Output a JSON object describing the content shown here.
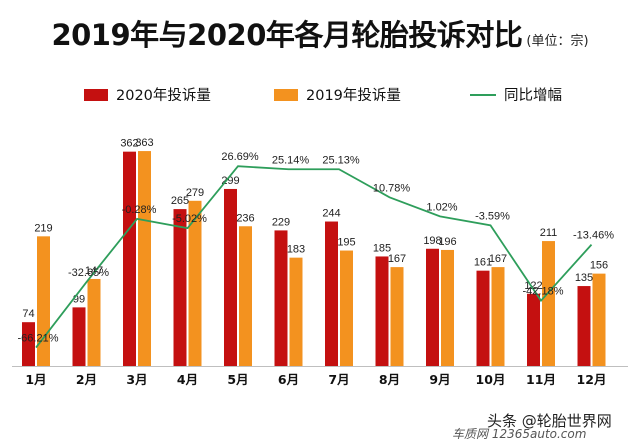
{
  "title": "2019年与2020年各月轮胎投诉对比",
  "unit": "(单位：宗)",
  "legend": [
    {
      "label": "2020年投诉量",
      "type": "bar",
      "color": "#c41010"
    },
    {
      "label": "2019年投诉量",
      "type": "bar",
      "color": "#f3921f"
    },
    {
      "label": "同比增幅",
      "type": "line",
      "color": "#2e9e5b"
    }
  ],
  "watermark": {
    "line1": "头条 @轮胎世界网",
    "line2": "车质网 12365auto.com"
  },
  "chart_data": {
    "type": "bar",
    "title": "2019年与2020年各月轮胎投诉对比",
    "categories": [
      "1月",
      "2月",
      "3月",
      "4月",
      "5月",
      "6月",
      "7月",
      "8月",
      "9月",
      "10月",
      "11月",
      "12月"
    ],
    "series": [
      {
        "name": "2020年投诉量",
        "color": "#c41010",
        "values": [
          74,
          99,
          362,
          265,
          299,
          229,
          244,
          185,
          198,
          161,
          122,
          135
        ]
      },
      {
        "name": "2019年投诉量",
        "color": "#f3921f",
        "values": [
          219,
          147,
          363,
          279,
          236,
          183,
          195,
          167,
          196,
          167,
          211,
          156
        ]
      },
      {
        "name": "同比增幅",
        "type": "line",
        "color": "#2e9e5b",
        "values": [
          -66.21,
          -32.65,
          -0.28,
          -5.02,
          26.69,
          25.14,
          25.13,
          10.78,
          1.02,
          -3.59,
          -42.18,
          -13.46
        ],
        "labels": [
          "-66.21%",
          "-32.65%",
          "-0.28%",
          "-5.02%",
          "26.69%",
          "25.14%",
          "25.13%",
          "10.78%",
          "1.02%",
          "-3.59%",
          "-42.18%",
          "-13.46%"
        ]
      }
    ],
    "ylim": [
      0,
      380
    ],
    "y2lim": [
      -70,
      35
    ],
    "legend_position": "top"
  }
}
